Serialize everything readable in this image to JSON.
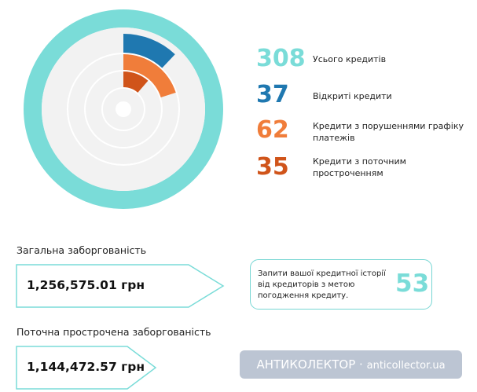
{
  "colors": {
    "teal": "#7adcd8",
    "blue": "#1f78b0",
    "orange": "#f07d3a",
    "dark_orange": "#d0541a",
    "track": "#f2f2f2",
    "text": "#222222"
  },
  "ring_chart": {
    "outer_ring_fraction": 1.0,
    "arcs": [
      {
        "name": "open",
        "value": 37,
        "of": 308,
        "color": "#1f78b0"
      },
      {
        "name": "violations",
        "value": 62,
        "of": 308,
        "color": "#f07d3a"
      },
      {
        "name": "overdue",
        "value": 35,
        "of": 308,
        "color": "#d0541a"
      }
    ]
  },
  "stats": {
    "total": {
      "value": "308",
      "label": "Усього кредитів",
      "color": "#7adcd8"
    },
    "open": {
      "value": "37",
      "label": "Відкриті кредити",
      "color": "#1f78b0"
    },
    "violations": {
      "value": "62",
      "label": "Кредити з порушеннями графіку платежів",
      "color": "#f07d3a"
    },
    "overdue": {
      "value": "35",
      "label": "Кредити з поточним простроченням",
      "color": "#d0541a"
    }
  },
  "total_debt": {
    "title": "Загальна заборгованість",
    "amount": "1,256,575.01 грн"
  },
  "overdue_debt": {
    "title": "Поточна прострочена заборгованість",
    "amount": "1,144,472.57 грн"
  },
  "requests": {
    "text": "Запити вашої кредитної історії від кредиторів з метою погодження кредиту.",
    "count": "53",
    "color": "#7adcd8"
  },
  "watermark": {
    "brand": "АНТИКОЛЕКТОР",
    "separator": "·",
    "site": "anticollector.ua"
  }
}
